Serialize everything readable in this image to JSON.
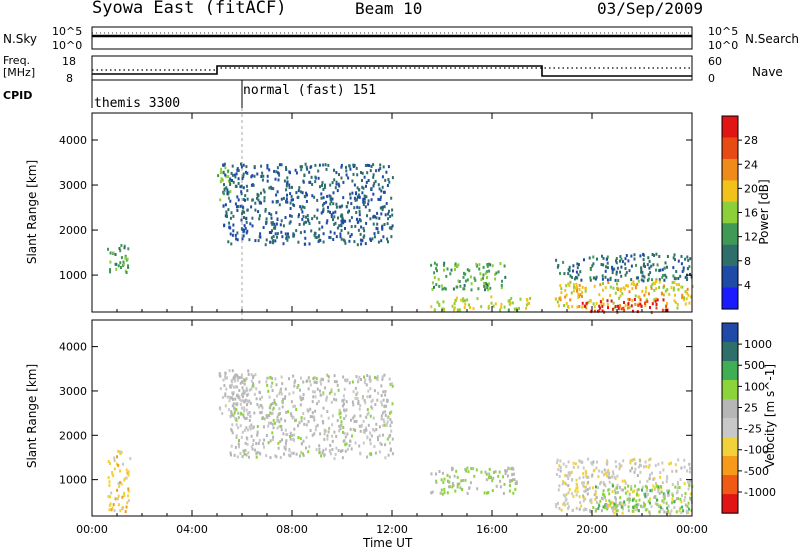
{
  "header": {
    "station": "Syowa East (fitACF)",
    "beam": "Beam 10",
    "date": "03/Sep/2009"
  },
  "strip_panels": {
    "nsky_label": "N.Sky",
    "nsky_ticks": [
      "10^5",
      "10^0"
    ],
    "nsearch_label": "N.Search",
    "nsearch_ticks": [
      "10^5",
      "10^0"
    ],
    "freq_label_1": "Freq.",
    "freq_label_2": "[MHz]",
    "freq_ticks": [
      "18",
      "8"
    ],
    "nave_label": "Nave",
    "nave_ticks": [
      "60",
      "0"
    ],
    "cpid_label": "CPID",
    "cpid_segments": [
      {
        "name": "themis 3300",
        "start_hour": 0,
        "end_hour": 6
      },
      {
        "name": "normal (fast) 151",
        "start_hour": 6,
        "end_hour": 24
      }
    ]
  },
  "power_panel": {
    "ylabel": "Slant Range [km]",
    "colorbar_label": "Power [dB]",
    "colorbar_ticks": [
      "28",
      "24",
      "20",
      "16",
      "12",
      "8",
      "4"
    ]
  },
  "velocity_panel": {
    "ylabel": "Slant Range [km]",
    "colorbar_label": "Velocity [m s^-1]",
    "colorbar_ticks": [
      "1000",
      "500",
      "100",
      "25",
      "-25",
      "-100",
      "-500",
      "-1000"
    ]
  },
  "xaxis": {
    "label": "Time UT",
    "ticks": [
      "00:00",
      "04:00",
      "08:00",
      "12:00",
      "16:00",
      "20:00",
      "00:00"
    ]
  },
  "chart_data": [
    {
      "type": "heatmap",
      "quantity": "power",
      "x_range_hours": [
        0,
        24
      ],
      "yticks": [
        1000,
        2000,
        3000,
        4000
      ],
      "ylim": [
        180,
        4600
      ],
      "color_range": [
        0,
        30
      ],
      "colors": [
        "#1b1bff",
        "#1f4aa8",
        "#2f6f6a",
        "#3f9a55",
        "#8bcf3a",
        "#f2c21a",
        "#f08a1a",
        "#e84a14",
        "#e11515"
      ],
      "regions": [
        {
          "t": [
            5.0,
            5.5
          ],
          "r": [
            2600,
            3500
          ],
          "v": 14
        },
        {
          "t": [
            5.2,
            12.0
          ],
          "r": [
            1700,
            3500
          ],
          "v": 7
        },
        {
          "t": [
            0.6,
            1.5
          ],
          "r": [
            1000,
            1700
          ],
          "v": 12
        },
        {
          "t": [
            13.5,
            16.5
          ],
          "r": [
            700,
            1300
          ],
          "v": 12
        },
        {
          "t": [
            13.5,
            17.5
          ],
          "r": [
            250,
            550
          ],
          "v": 16
        },
        {
          "t": [
            18.5,
            24.0
          ],
          "r": [
            900,
            1500
          ],
          "v": 8
        },
        {
          "t": [
            18.5,
            24.0
          ],
          "r": [
            300,
            900
          ],
          "v": 18
        },
        {
          "t": [
            19.5,
            23.0
          ],
          "r": [
            200,
            500
          ],
          "v": 27
        }
      ]
    },
    {
      "type": "heatmap",
      "quantity": "velocity",
      "x_range_hours": [
        0,
        24
      ],
      "yticks": [
        1000,
        2000,
        3000,
        4000
      ],
      "ylim": [
        180,
        4600
      ],
      "color_range": [
        -1000,
        1000
      ],
      "colors": [
        "#e11515",
        "#f05a14",
        "#f59a1a",
        "#f2d23a",
        "#c8c8c8",
        "#b6b6b6",
        "#8bd43a",
        "#3fae55",
        "#2f6f6a",
        "#1f4aa8"
      ],
      "regions": [
        {
          "t": [
            5.0,
            6.5
          ],
          "r": [
            2500,
            3500
          ],
          "v": 0
        },
        {
          "t": [
            5.5,
            12.0
          ],
          "r": [
            1500,
            3400
          ],
          "v": 60
        },
        {
          "t": [
            0.6,
            1.5
          ],
          "r": [
            300,
            1700
          ],
          "v": -300
        },
        {
          "t": [
            13.5,
            17.0
          ],
          "r": [
            700,
            1300
          ],
          "v": 200
        },
        {
          "t": [
            18.5,
            24.0
          ],
          "r": [
            250,
            1500
          ],
          "v": -120
        },
        {
          "t": [
            20.0,
            24.0
          ],
          "r": [
            300,
            900
          ],
          "v": 300
        }
      ]
    }
  ]
}
